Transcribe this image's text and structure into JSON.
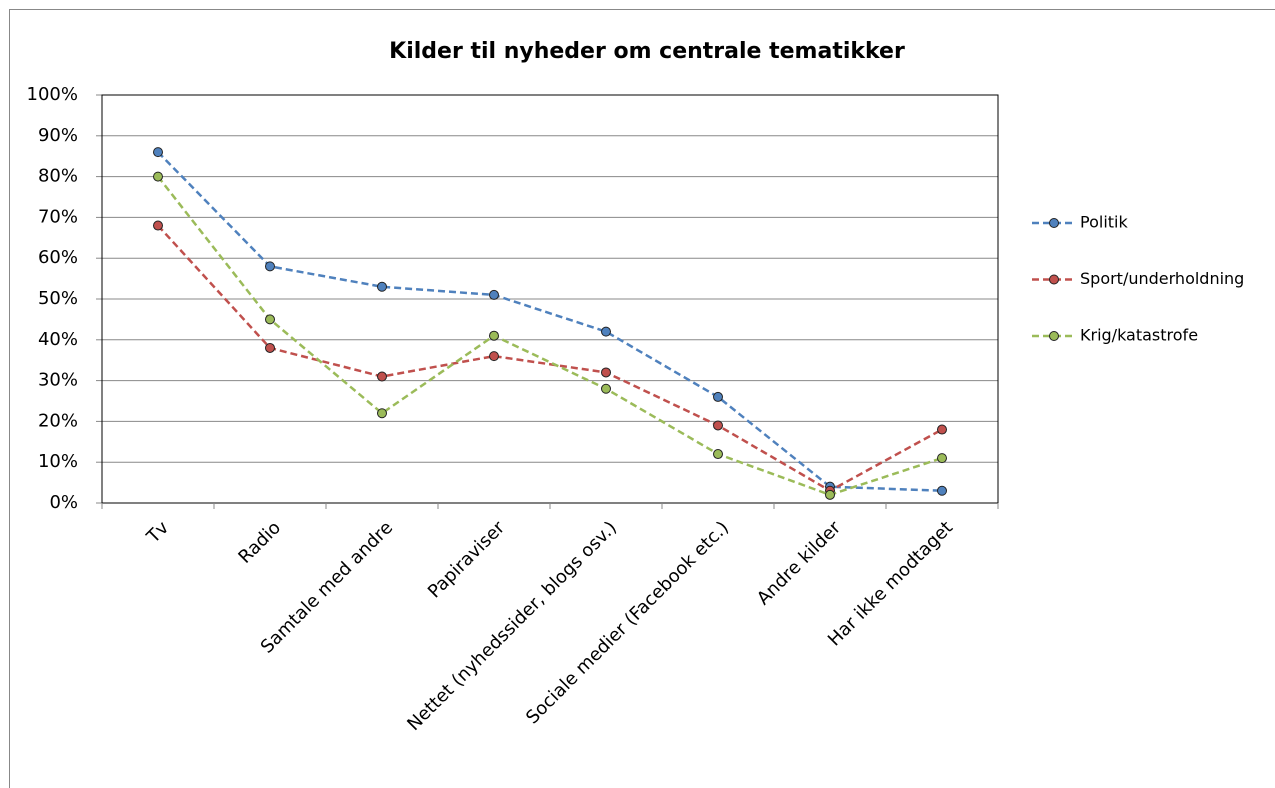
{
  "chart_data": {
    "type": "line",
    "title": "Kilder til nyheder om centrale tematikker",
    "categories": [
      "Tv",
      "Radio",
      "Samtale med andre",
      "Papiraviser",
      "Nettet (nyhedssider, blogs osv.)",
      "Sociale medier (Facebook etc.)",
      "Andre kilder",
      "Har ikke modtaget"
    ],
    "series": [
      {
        "name": "Politik",
        "color": "#4f81bd",
        "values": [
          86,
          58,
          53,
          51,
          42,
          26,
          4,
          3
        ]
      },
      {
        "name": "Sport/underholdning",
        "color": "#c0504d",
        "values": [
          68,
          38,
          31,
          36,
          32,
          19,
          3,
          18
        ]
      },
      {
        "name": "Krig/katastrofe",
        "color": "#9bbb59",
        "values": [
          80,
          45,
          22,
          41,
          28,
          12,
          2,
          11
        ]
      }
    ],
    "ylim": [
      0,
      100
    ],
    "yticks": [
      {
        "value": 0,
        "label": "0%"
      },
      {
        "value": 10,
        "label": "10%"
      },
      {
        "value": 20,
        "label": "20%"
      },
      {
        "value": 30,
        "label": "30%"
      },
      {
        "value": 40,
        "label": "40%"
      },
      {
        "value": 50,
        "label": "50%"
      },
      {
        "value": 60,
        "label": "60%"
      },
      {
        "value": 70,
        "label": "70%"
      },
      {
        "value": 80,
        "label": "80%"
      },
      {
        "value": 90,
        "label": "90%"
      },
      {
        "value": 100,
        "label": "100%"
      }
    ],
    "grid": true,
    "legend": "right"
  }
}
